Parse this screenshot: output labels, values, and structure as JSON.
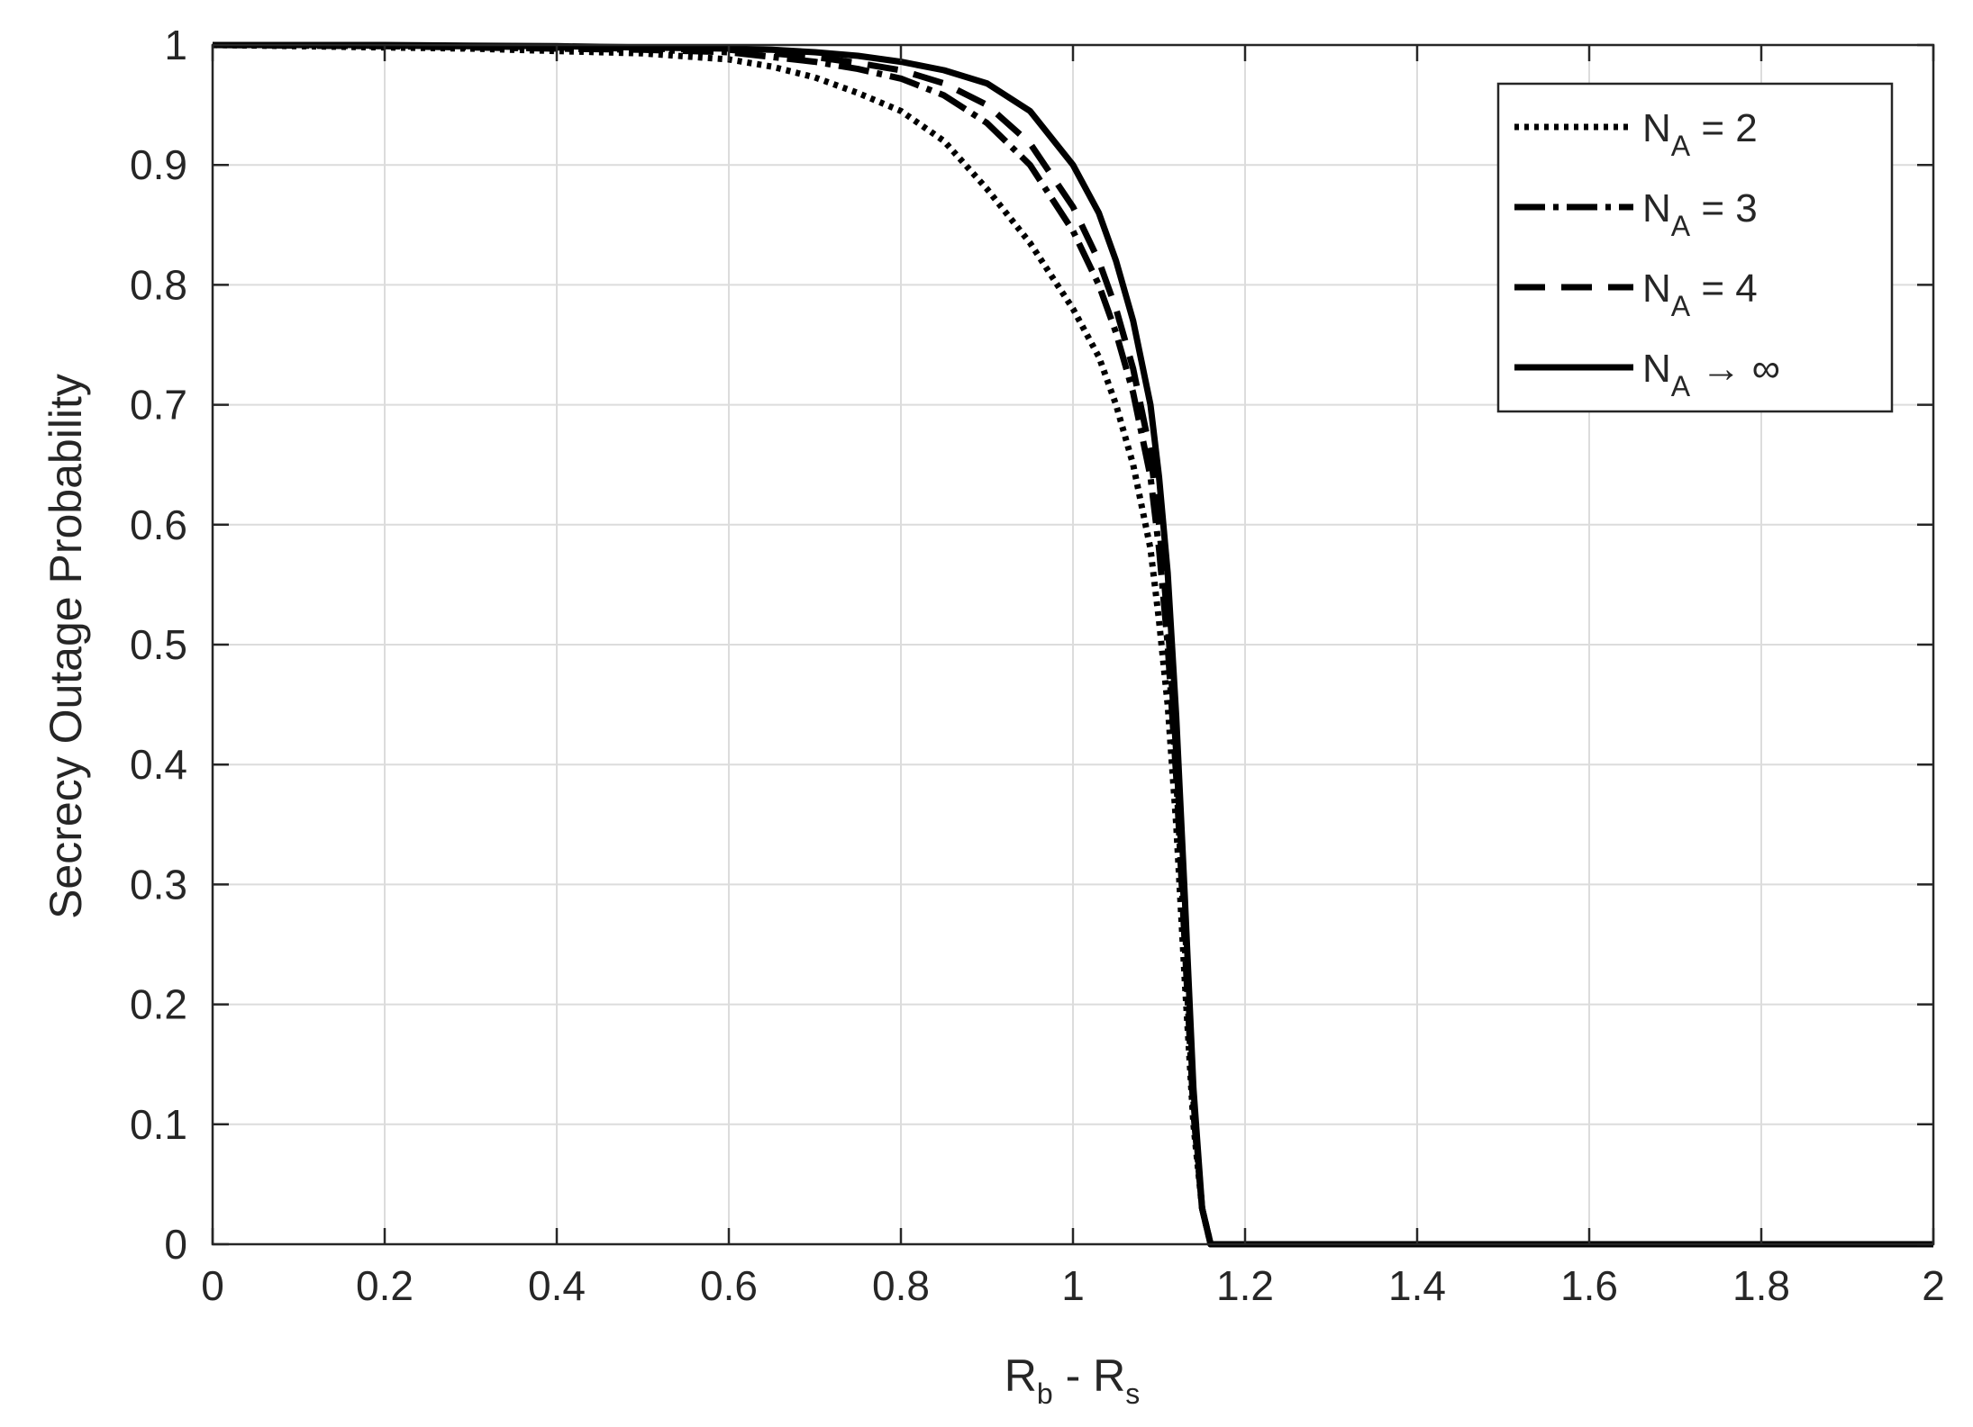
{
  "chart_data": {
    "type": "line",
    "title": "",
    "xlabel": {
      "main": "R",
      "sub1": "b",
      "mid": " - R",
      "sub2": "s"
    },
    "ylabel": "Secrecy Outage Probability",
    "xlim": [
      0,
      2
    ],
    "ylim": [
      0,
      1
    ],
    "xticks": [
      0,
      0.2,
      0.4,
      0.6,
      0.8,
      1,
      1.2,
      1.4,
      1.6,
      1.8,
      2
    ],
    "xtick_labels": [
      "0",
      "0.2",
      "0.4",
      "0.6",
      "0.8",
      "1",
      "1.2",
      "1.4",
      "1.6",
      "1.8",
      "2"
    ],
    "yticks": [
      0,
      0.1,
      0.2,
      0.3,
      0.4,
      0.5,
      0.6,
      0.7,
      0.8,
      0.9,
      1
    ],
    "ytick_labels": [
      "0",
      "0.1",
      "0.2",
      "0.3",
      "0.4",
      "0.5",
      "0.6",
      "0.7",
      "0.8",
      "0.9",
      "1"
    ],
    "grid": true,
    "legend_position": "top-right",
    "line_color": "#000000",
    "grid_color": "#dcdcdc",
    "axis_color": "#262626",
    "series": [
      {
        "name": "N_A = 2",
        "legend": {
          "main": "N",
          "sub": "A",
          "rest": " = 2"
        },
        "style": "dotted",
        "x": [
          0,
          0.1,
          0.2,
          0.3,
          0.4,
          0.5,
          0.6,
          0.65,
          0.7,
          0.75,
          0.8,
          0.85,
          0.9,
          0.95,
          1.0,
          1.03,
          1.05,
          1.07,
          1.09,
          1.1,
          1.11,
          1.12,
          1.13,
          1.14,
          1.15,
          1.16,
          1.2,
          1.4,
          1.6,
          1.8,
          2.0
        ],
        "y": [
          1.0,
          0.999,
          0.998,
          0.997,
          0.995,
          0.993,
          0.988,
          0.982,
          0.973,
          0.96,
          0.945,
          0.92,
          0.88,
          0.835,
          0.78,
          0.74,
          0.7,
          0.65,
          0.58,
          0.52,
          0.45,
          0.35,
          0.22,
          0.1,
          0.03,
          0.0,
          0.0,
          0.0,
          0.0,
          0.0,
          0.0
        ]
      },
      {
        "name": "N_A = 3",
        "legend": {
          "main": "N",
          "sub": "A",
          "rest": " = 3"
        },
        "style": "dashdot",
        "x": [
          0,
          0.1,
          0.2,
          0.3,
          0.4,
          0.5,
          0.6,
          0.65,
          0.7,
          0.75,
          0.8,
          0.85,
          0.9,
          0.95,
          1.0,
          1.03,
          1.05,
          1.07,
          1.09,
          1.1,
          1.11,
          1.12,
          1.13,
          1.14,
          1.15,
          1.16,
          1.2,
          1.4,
          1.6,
          1.8,
          2.0
        ],
        "y": [
          1.0,
          0.9995,
          0.999,
          0.998,
          0.997,
          0.996,
          0.994,
          0.99,
          0.986,
          0.98,
          0.972,
          0.958,
          0.935,
          0.9,
          0.845,
          0.8,
          0.76,
          0.71,
          0.64,
          0.58,
          0.5,
          0.39,
          0.25,
          0.11,
          0.03,
          0.0,
          0.0,
          0.0,
          0.0,
          0.0,
          0.0
        ]
      },
      {
        "name": "N_A = 4",
        "legend": {
          "main": "N",
          "sub": "A",
          "rest": " = 4"
        },
        "style": "dashed",
        "x": [
          0,
          0.1,
          0.2,
          0.3,
          0.4,
          0.5,
          0.6,
          0.65,
          0.7,
          0.75,
          0.8,
          0.85,
          0.9,
          0.95,
          1.0,
          1.03,
          1.05,
          1.07,
          1.09,
          1.1,
          1.11,
          1.12,
          1.13,
          1.14,
          1.15,
          1.16,
          1.2,
          1.4,
          1.6,
          1.8,
          2.0
        ],
        "y": [
          1.0,
          1.0,
          0.9995,
          0.999,
          0.998,
          0.997,
          0.996,
          0.993,
          0.99,
          0.985,
          0.979,
          0.968,
          0.95,
          0.918,
          0.865,
          0.82,
          0.78,
          0.73,
          0.66,
          0.6,
          0.52,
          0.41,
          0.27,
          0.12,
          0.03,
          0.0,
          0.0,
          0.0,
          0.0,
          0.0,
          0.0
        ]
      },
      {
        "name": "N_A → ∞",
        "legend": {
          "main": "N",
          "sub": "A",
          "rest": " → ∞"
        },
        "style": "solid",
        "x": [
          0,
          0.1,
          0.2,
          0.3,
          0.4,
          0.5,
          0.6,
          0.65,
          0.7,
          0.75,
          0.8,
          0.85,
          0.9,
          0.95,
          1.0,
          1.03,
          1.05,
          1.07,
          1.09,
          1.1,
          1.11,
          1.12,
          1.13,
          1.14,
          1.15,
          1.16,
          1.2,
          1.4,
          1.6,
          1.8,
          2.0
        ],
        "y": [
          1.0,
          1.0,
          1.0,
          0.9995,
          0.999,
          0.998,
          0.997,
          0.996,
          0.994,
          0.991,
          0.986,
          0.979,
          0.968,
          0.945,
          0.9,
          0.86,
          0.82,
          0.77,
          0.7,
          0.64,
          0.56,
          0.44,
          0.29,
          0.13,
          0.03,
          0.0,
          0.0,
          0.0,
          0.0,
          0.0,
          0.0
        ]
      }
    ]
  }
}
